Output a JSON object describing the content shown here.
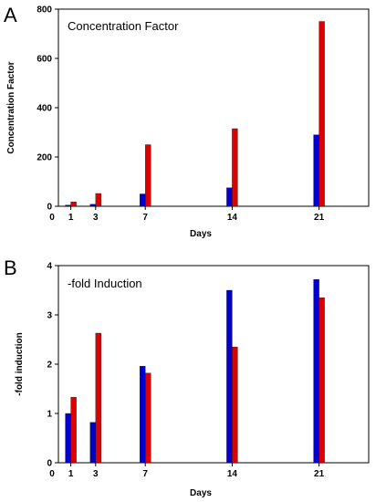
{
  "chart_data": [
    {
      "panel": "A",
      "type": "bar",
      "title": "Concentration Factor",
      "xlabel": "Days",
      "ylabel": "Concentration Factor",
      "x_ticks": [
        "0",
        "1",
        "3",
        "7",
        "14",
        "21"
      ],
      "y_ticks": [
        "0",
        "200",
        "400",
        "600",
        "800"
      ],
      "categories": [
        1,
        3,
        7,
        14,
        21
      ],
      "xlim": [
        0,
        25
      ],
      "ylim": [
        0,
        800
      ],
      "grid": false,
      "colors": [
        "#0000cc",
        "#dd0000"
      ],
      "series": [
        {
          "values": [
            5,
            8,
            50,
            75,
            290
          ]
        },
        {
          "values": [
            18,
            52,
            250,
            315,
            750
          ]
        }
      ]
    },
    {
      "panel": "B",
      "type": "bar",
      "title": "-fold Induction",
      "xlabel": "Days",
      "ylabel": "-fold induction",
      "x_ticks": [
        "0",
        "1",
        "3",
        "7",
        "14",
        "21"
      ],
      "y_ticks": [
        "0",
        "1",
        "2",
        "3",
        "4"
      ],
      "categories": [
        1,
        3,
        7,
        14,
        21
      ],
      "xlim": [
        0,
        25
      ],
      "ylim": [
        0,
        4
      ],
      "grid": false,
      "colors": [
        "#0000cc",
        "#dd0000"
      ],
      "series": [
        {
          "values": [
            1.0,
            0.82,
            1.96,
            3.5,
            3.72
          ]
        },
        {
          "values": [
            1.33,
            2.63,
            1.82,
            2.35,
            3.35
          ]
        }
      ]
    }
  ]
}
